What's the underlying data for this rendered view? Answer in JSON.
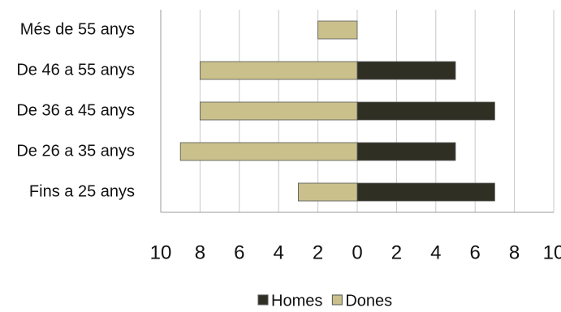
{
  "chart_data": {
    "type": "bar",
    "orientation": "horizontal",
    "stacked": "diverging",
    "categories": [
      "Més de 55 anys",
      "De 46 a 55 anys",
      "De 36 a 45 anys",
      "De 26 a 35 anys",
      "Fins a 25 anys"
    ],
    "series": [
      {
        "name": "Homes",
        "color": "#2f2f24",
        "values": [
          0,
          5,
          7,
          5,
          7
        ]
      },
      {
        "name": "Dones",
        "color": "#c9c08c",
        "values": [
          -2,
          -8,
          -8,
          -9,
          -3
        ]
      }
    ],
    "xlim": [
      -10,
      10
    ],
    "xticks": [
      {
        "value": -10,
        "label": "10"
      },
      {
        "value": -8,
        "label": "8"
      },
      {
        "value": -6,
        "label": "6"
      },
      {
        "value": -4,
        "label": "4"
      },
      {
        "value": -2,
        "label": "2"
      },
      0,
      2,
      4,
      6,
      8,
      10
    ],
    "grid": true,
    "legend": "bottom"
  }
}
